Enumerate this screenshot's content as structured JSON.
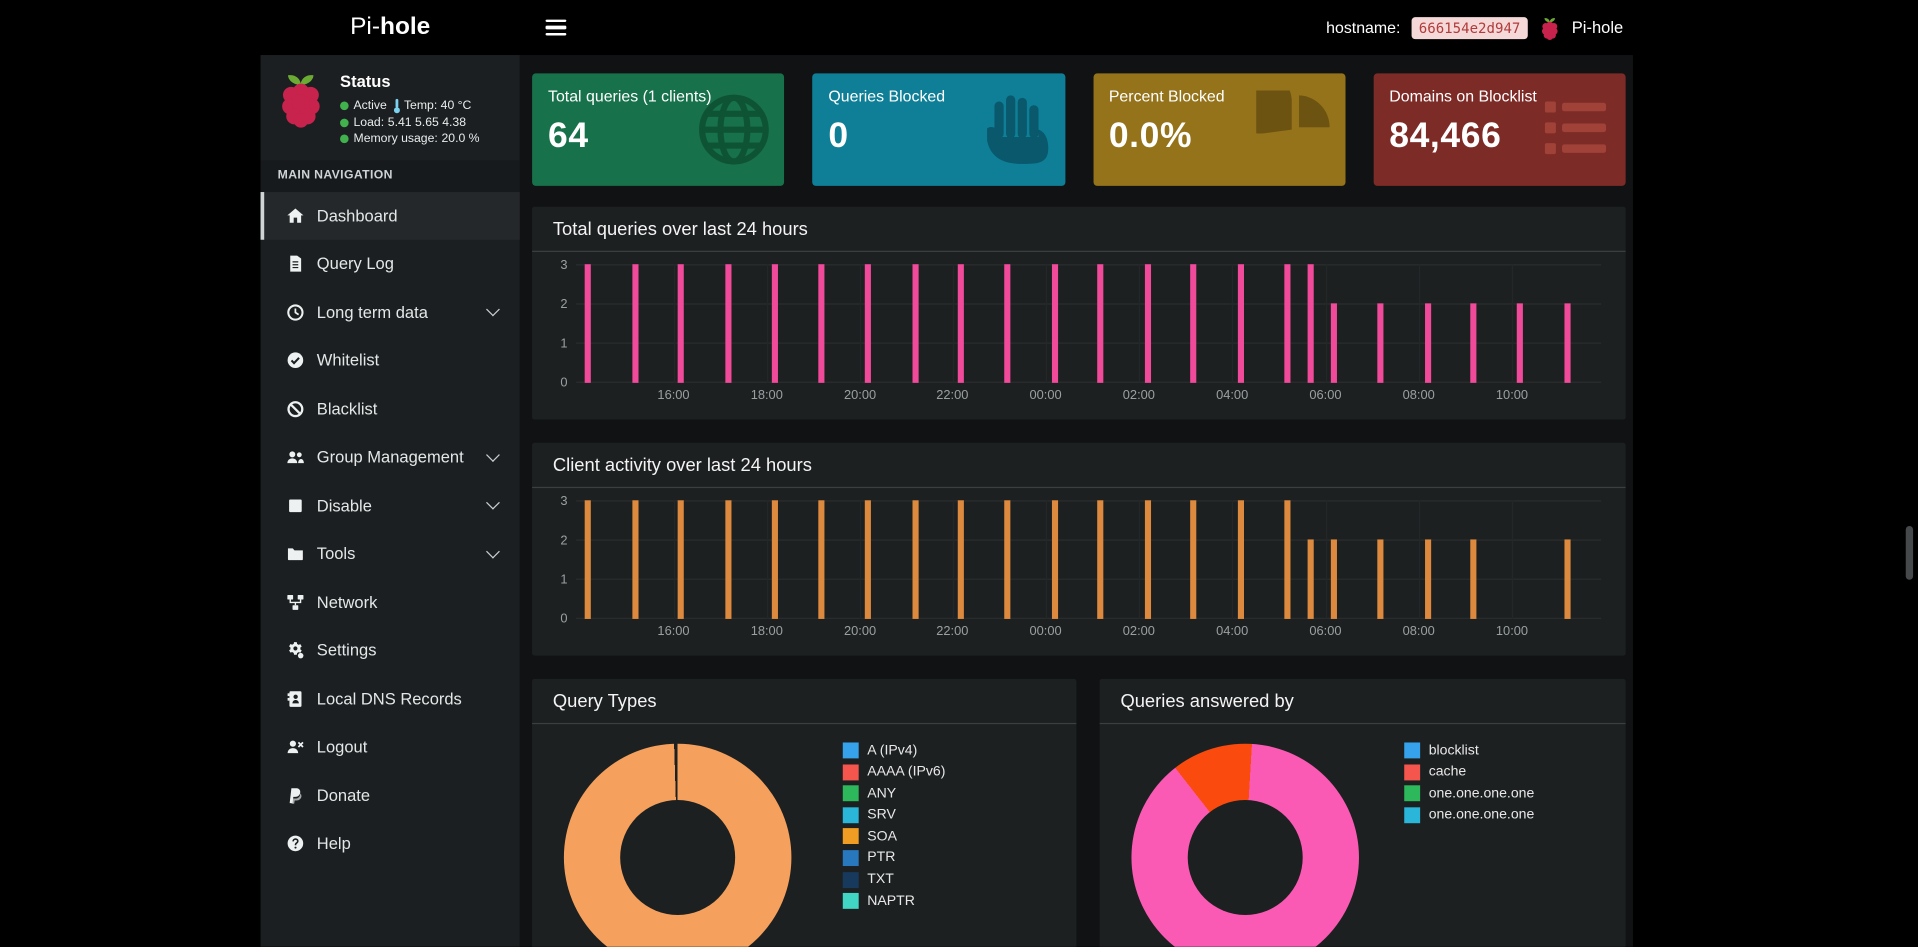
{
  "navbar": {
    "brand_prefix": "Pi-",
    "brand_suffix": "hole",
    "hostname_label": "hostname:",
    "hostname_value": "666154e2d947",
    "brand_right": "Pi-hole"
  },
  "sidebar": {
    "status": {
      "title": "Status",
      "lines": [
        {
          "label": "Active",
          "thermometer": true,
          "extra": "Temp: 40 °C"
        },
        {
          "label": "Load:",
          "extra": "5.41  5.65  4.38"
        },
        {
          "label": "Memory usage:",
          "extra": "20.0 %"
        }
      ]
    },
    "section_label": "MAIN NAVIGATION",
    "items": [
      {
        "label": "Dashboard",
        "icon": "home-icon",
        "active": true
      },
      {
        "label": "Query Log",
        "icon": "file-icon"
      },
      {
        "label": "Long term data",
        "icon": "clock-icon",
        "expandable": true
      },
      {
        "label": "Whitelist",
        "icon": "check-circle-icon"
      },
      {
        "label": "Blacklist",
        "icon": "ban-icon"
      },
      {
        "label": "Group Management",
        "icon": "users-icon",
        "expandable": true
      },
      {
        "label": "Disable",
        "icon": "stop-icon",
        "expandable": true
      },
      {
        "label": "Tools",
        "icon": "folder-icon",
        "expandable": true
      },
      {
        "label": "Network",
        "icon": "network-icon"
      },
      {
        "label": "Settings",
        "icon": "gears-icon"
      },
      {
        "label": "Local DNS Records",
        "icon": "address-book-icon"
      },
      {
        "label": "Logout",
        "icon": "user-times-icon"
      },
      {
        "label": "Donate",
        "icon": "paypal-icon"
      },
      {
        "label": "Help",
        "icon": "question-circle-icon"
      }
    ]
  },
  "cards": [
    {
      "label": "Total queries (1 clients)",
      "value": "64",
      "color": "#17714a",
      "icon_color": "#0f5335",
      "icon": "globe-icon"
    },
    {
      "label": "Queries Blocked",
      "value": "0",
      "color": "#0e7f96",
      "icon_color": "#09586b",
      "icon": "hand-paper-icon"
    },
    {
      "label": "Percent Blocked",
      "value": "0.0%",
      "color": "#95731a",
      "icon_color": "#6d5311",
      "icon": "chart-pie-icon"
    },
    {
      "label": "Domains on Blocklist",
      "value": "84,466",
      "color": "#7d2b27",
      "icon_color": "#a04238",
      "icon": "list-icon"
    }
  ],
  "chart_data": [
    {
      "type": "bar",
      "title": "Total queries over last 24 hours",
      "color": "#f24a9b",
      "ylim": [
        0,
        3
      ],
      "yticks": [
        0,
        1,
        2,
        3
      ],
      "grid": true,
      "xticks": [
        {
          "label": "16:00",
          "pos": 0.095
        },
        {
          "label": "18:00",
          "pos": 0.186
        },
        {
          "label": "20:00",
          "pos": 0.277
        },
        {
          "label": "22:00",
          "pos": 0.367
        },
        {
          "label": "00:00",
          "pos": 0.458
        },
        {
          "label": "02:00",
          "pos": 0.549
        },
        {
          "label": "04:00",
          "pos": 0.64
        },
        {
          "label": "06:00",
          "pos": 0.731
        },
        {
          "label": "08:00",
          "pos": 0.822
        },
        {
          "label": "10:00",
          "pos": 0.913
        }
      ],
      "bars": [
        {
          "time": "14:10",
          "pos": 0.011,
          "value": 3
        },
        {
          "time": "15:10",
          "pos": 0.057,
          "value": 3
        },
        {
          "time": "16:10",
          "pos": 0.102,
          "value": 3
        },
        {
          "time": "17:10",
          "pos": 0.148,
          "value": 3
        },
        {
          "time": "18:10",
          "pos": 0.193,
          "value": 3
        },
        {
          "time": "19:10",
          "pos": 0.239,
          "value": 3
        },
        {
          "time": "20:10",
          "pos": 0.284,
          "value": 3
        },
        {
          "time": "21:10",
          "pos": 0.33,
          "value": 3
        },
        {
          "time": "22:10",
          "pos": 0.375,
          "value": 3
        },
        {
          "time": "23:10",
          "pos": 0.42,
          "value": 3
        },
        {
          "time": "00:10",
          "pos": 0.466,
          "value": 3
        },
        {
          "time": "01:10",
          "pos": 0.511,
          "value": 3
        },
        {
          "time": "02:10",
          "pos": 0.557,
          "value": 3
        },
        {
          "time": "03:10",
          "pos": 0.602,
          "value": 3
        },
        {
          "time": "04:10",
          "pos": 0.648,
          "value": 3
        },
        {
          "time": "05:10",
          "pos": 0.693,
          "value": 3
        },
        {
          "time": "05:40",
          "pos": 0.716,
          "value": 3
        },
        {
          "time": "06:10",
          "pos": 0.739,
          "value": 2
        },
        {
          "time": "07:10",
          "pos": 0.784,
          "value": 2
        },
        {
          "time": "08:10",
          "pos": 0.83,
          "value": 2
        },
        {
          "time": "09:10",
          "pos": 0.875,
          "value": 2
        },
        {
          "time": "10:10",
          "pos": 0.92,
          "value": 2
        },
        {
          "time": "11:10",
          "pos": 0.966,
          "value": 2
        }
      ]
    },
    {
      "type": "bar",
      "title": "Client activity over last 24 hours",
      "color": "#de8a3e",
      "ylim": [
        0,
        3
      ],
      "yticks": [
        0,
        1,
        2,
        3
      ],
      "grid": true,
      "xticks": [
        {
          "label": "16:00",
          "pos": 0.095
        },
        {
          "label": "18:00",
          "pos": 0.186
        },
        {
          "label": "20:00",
          "pos": 0.277
        },
        {
          "label": "22:00",
          "pos": 0.367
        },
        {
          "label": "00:00",
          "pos": 0.458
        },
        {
          "label": "02:00",
          "pos": 0.549
        },
        {
          "label": "04:00",
          "pos": 0.64
        },
        {
          "label": "06:00",
          "pos": 0.731
        },
        {
          "label": "08:00",
          "pos": 0.822
        },
        {
          "label": "10:00",
          "pos": 0.913
        }
      ],
      "bars": [
        {
          "time": "14:10",
          "pos": 0.011,
          "value": 3
        },
        {
          "time": "15:10",
          "pos": 0.057,
          "value": 3
        },
        {
          "time": "16:10",
          "pos": 0.102,
          "value": 3
        },
        {
          "time": "17:10",
          "pos": 0.148,
          "value": 3
        },
        {
          "time": "18:10",
          "pos": 0.193,
          "value": 3
        },
        {
          "time": "19:10",
          "pos": 0.239,
          "value": 3
        },
        {
          "time": "20:10",
          "pos": 0.284,
          "value": 3
        },
        {
          "time": "21:10",
          "pos": 0.33,
          "value": 3
        },
        {
          "time": "22:10",
          "pos": 0.375,
          "value": 3
        },
        {
          "time": "23:10",
          "pos": 0.42,
          "value": 3
        },
        {
          "time": "00:10",
          "pos": 0.466,
          "value": 3
        },
        {
          "time": "01:10",
          "pos": 0.511,
          "value": 3
        },
        {
          "time": "02:10",
          "pos": 0.557,
          "value": 3
        },
        {
          "time": "03:10",
          "pos": 0.602,
          "value": 3
        },
        {
          "time": "04:10",
          "pos": 0.648,
          "value": 3
        },
        {
          "time": "05:10",
          "pos": 0.693,
          "value": 3
        },
        {
          "time": "05:40",
          "pos": 0.716,
          "value": 2
        },
        {
          "time": "06:10",
          "pos": 0.739,
          "value": 2
        },
        {
          "time": "07:10",
          "pos": 0.784,
          "value": 2
        },
        {
          "time": "08:10",
          "pos": 0.83,
          "value": 2
        },
        {
          "time": "09:10",
          "pos": 0.875,
          "value": 2
        },
        {
          "time": "10:10",
          "pos": 0.92,
          "value": 0
        },
        {
          "time": "11:10",
          "pos": 0.966,
          "value": 2
        }
      ]
    },
    {
      "type": "donut",
      "title": "Query Types",
      "rotate": 0,
      "slices": [
        {
          "percent": 99.5,
          "color": "#f5a05c"
        },
        {
          "percent": 0.5,
          "color": "#1d2021"
        }
      ],
      "legend": [
        {
          "label": "A (IPv4)",
          "color": "#36a2eb"
        },
        {
          "label": "AAAA (IPv6)",
          "color": "#f4564e"
        },
        {
          "label": "ANY",
          "color": "#2eb85c"
        },
        {
          "label": "SRV",
          "color": "#29b6d8"
        },
        {
          "label": "SOA",
          "color": "#f09d24"
        },
        {
          "label": "PTR",
          "color": "#2778bd"
        },
        {
          "label": "TXT",
          "color": "#173a5c"
        },
        {
          "label": "NAPTR",
          "color": "#41d6c3"
        }
      ]
    },
    {
      "type": "donut",
      "title": "Queries answered by",
      "rotate": -38,
      "slices": [
        {
          "percent": 11.5,
          "color": "#fa4a0e"
        },
        {
          "percent": 88.5,
          "color": "#fa5ab3"
        }
      ],
      "legend": [
        {
          "label": "blocklist",
          "color": "#36a2eb"
        },
        {
          "label": "cache",
          "color": "#f4564e"
        },
        {
          "label": "one.one.one.one",
          "color": "#2eb85c"
        },
        {
          "label": "one.one.one.one",
          "color": "#29b6d8"
        }
      ]
    }
  ]
}
